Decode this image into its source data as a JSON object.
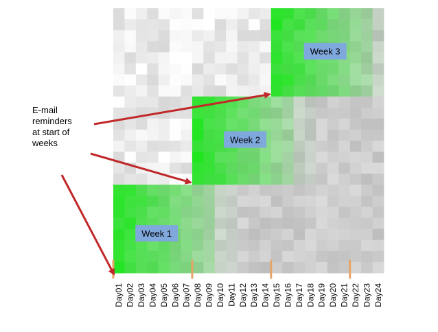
{
  "chart_data": {
    "type": "heatmap",
    "columns": [
      "Day01",
      "Day02",
      "Day03",
      "Day04",
      "Day05",
      "Day06",
      "Day07",
      "Day08",
      "Day09",
      "Day10",
      "Day11",
      "Day12",
      "Day13",
      "Day14",
      "Day15",
      "Day16",
      "Day17",
      "Day18",
      "Day19",
      "Day20",
      "Day21",
      "Day22",
      "Day23",
      "Day24"
    ],
    "week_blocks": [
      {
        "label": "Week 1",
        "start_day": "Day01",
        "end_day": "Day07"
      },
      {
        "label": "Week 2",
        "start_day": "Day08",
        "end_day": "Day14"
      },
      {
        "label": "Week 3",
        "start_day": "Day15",
        "end_day": "Day21"
      }
    ],
    "reminder_days": [
      "Day01",
      "Day08",
      "Day15",
      "Day22"
    ],
    "annotation": {
      "lines": [
        "E-mail",
        "reminders",
        "at start of",
        "weeks"
      ]
    },
    "colors": {
      "high": "#1ee61e",
      "low_light": "#f4f4f4",
      "low_dark": "#bcbcbc",
      "label_box": "#7fa8dc",
      "arrow": "#c0282a",
      "tick_mark": "#e8a466"
    }
  }
}
